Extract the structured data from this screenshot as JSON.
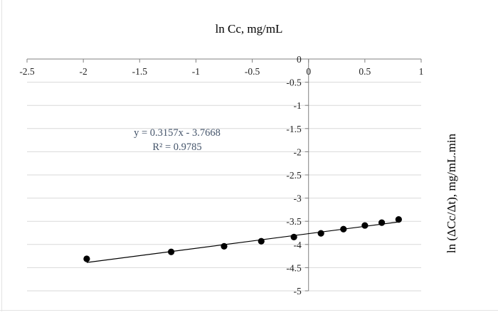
{
  "chart_data": {
    "type": "scatter",
    "title": "ln Cc, mg/mL",
    "xlabel": "ln Cc, mg/mL",
    "ylabel": "ln (ΔCc/Δt), mg/mL.min",
    "xlim": [
      -2.5,
      1
    ],
    "ylim": [
      -5,
      0
    ],
    "x_ticks": [
      -2.5,
      -2,
      -1.5,
      -1,
      -0.5,
      0,
      0.5,
      1
    ],
    "x_tick_labels": [
      "-2.5",
      "-2",
      "-1.5",
      "-1",
      "-0.5",
      "0",
      "0.5",
      "1"
    ],
    "y_ticks": [
      0,
      -0.5,
      -1,
      -1.5,
      -2,
      -2.5,
      -3,
      -3.5,
      -4,
      -4.5,
      -5
    ],
    "y_tick_labels": [
      "0",
      "-0.5",
      "-1",
      "-1.5",
      "-2",
      "-2.5",
      "-3",
      "-3.5",
      "-4",
      "-4.5",
      "-5"
    ],
    "x_axis_position": "top",
    "grid": {
      "horizontal": true,
      "vertical": false
    },
    "legend": "none",
    "series": [
      {
        "marker_color": "#000000",
        "x": [
          -1.97,
          -1.22,
          -0.75,
          -0.42,
          -0.13,
          0.11,
          0.31,
          0.5,
          0.65,
          0.8
        ],
        "y": [
          -4.31,
          -4.16,
          -4.04,
          -3.93,
          -3.84,
          -3.76,
          -3.67,
          -3.59,
          -3.53,
          -3.46
        ]
      }
    ],
    "trendline": {
      "slope": 0.3157,
      "intercept": -3.7668,
      "x_range": [
        -1.97,
        0.8
      ],
      "color": "#000000",
      "equation_label": "y = 0.3157x - 3.7668",
      "r2_label": "R² = 0.9785",
      "label_color": "#44546a"
    },
    "colors": {
      "gridline": "#d9d9d9",
      "axis": "#808080"
    }
  }
}
